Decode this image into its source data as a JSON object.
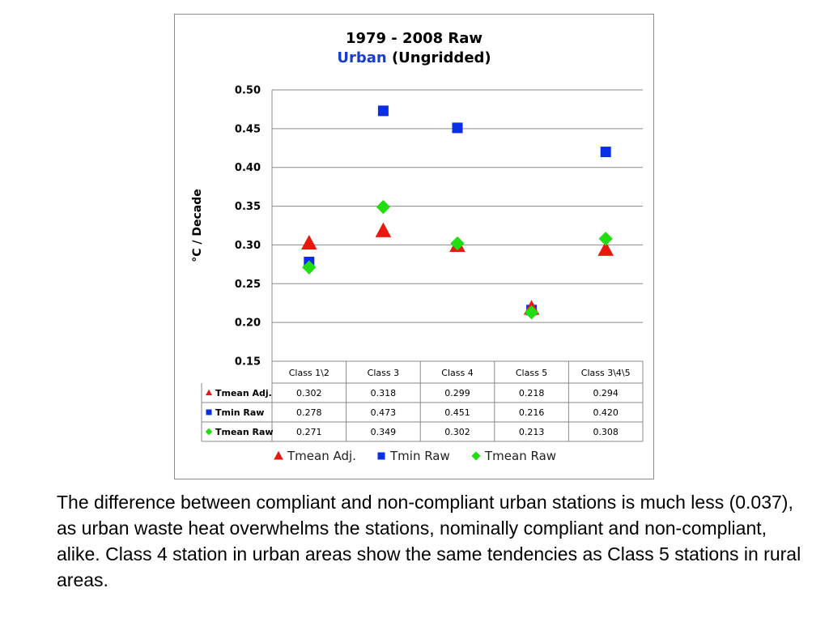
{
  "chart_data": {
    "type": "scatter",
    "title_line1": "1979 - 2008 Raw",
    "title_line2_accent": "Urban",
    "title_line2_rest": " (Ungridded)",
    "ylabel": "°C / Decade",
    "ylim": [
      0.15,
      0.5
    ],
    "y_ticks": [
      "0.15",
      "0.20",
      "0.25",
      "0.30",
      "0.35",
      "0.40",
      "0.45",
      "0.50"
    ],
    "categories": [
      "Class 1\\2",
      "Class 3",
      "Class 4",
      "Class 5",
      "Class 3\\4\\5"
    ],
    "grid": true,
    "legend_position": "bottom",
    "series": [
      {
        "name": "Tmean Adj.",
        "marker": "triangle",
        "color": "#e8190c",
        "values": [
          0.302,
          0.318,
          0.299,
          0.218,
          0.294
        ],
        "labels": [
          "0.302",
          "0.318",
          "0.299",
          "0.218",
          "0.294"
        ]
      },
      {
        "name": "Tmin Raw",
        "marker": "square",
        "color": "#0a2ee6",
        "values": [
          0.278,
          0.473,
          0.451,
          0.216,
          0.42
        ],
        "labels": [
          "0.278",
          "0.473",
          "0.451",
          "0.216",
          "0.420"
        ]
      },
      {
        "name": "Tmean Raw",
        "marker": "diamond",
        "color": "#22dd11",
        "values": [
          0.271,
          0.349,
          0.302,
          0.213,
          0.308
        ],
        "labels": [
          "0.271",
          "0.349",
          "0.302",
          "0.213",
          "0.308"
        ]
      }
    ]
  },
  "caption": "The difference between compliant and non-compliant urban stations is much less (0.037), as urban waste heat overwhelms the stations, nominally compliant and non-compliant, alike. Class 4 station in urban areas show the same tendencies as Class 5 stations in rural areas."
}
